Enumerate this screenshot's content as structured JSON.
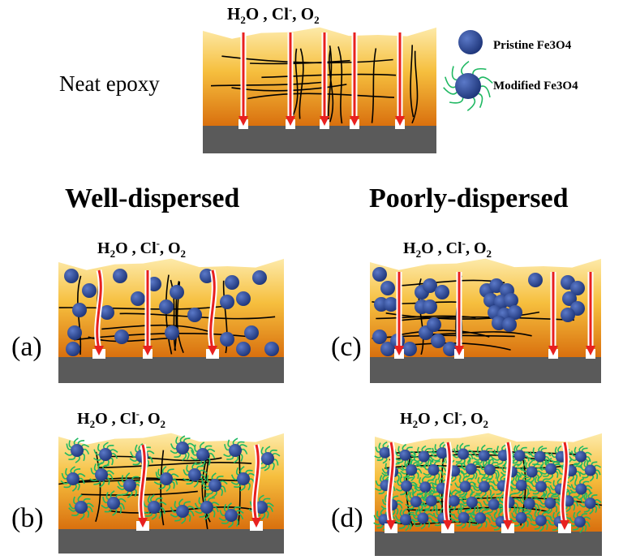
{
  "top": {
    "label": "Neat epoxy",
    "species": {
      "a": "H",
      "a_sub": "2",
      "b": "O , Cl",
      "b_sup": "-",
      "c": ", O",
      "c_sub": "2"
    }
  },
  "legend": {
    "pristine": "Pristine Fe3O4",
    "modified": "Modified Fe3O4"
  },
  "headings": {
    "well": "Well-dispersed",
    "poor": "Poorly-dispersed"
  },
  "panels": [
    {
      "id": "a",
      "label": "(a)",
      "particles": "pristine",
      "dispersion": "well"
    },
    {
      "id": "b",
      "label": "(b)",
      "particles": "modified",
      "dispersion": "well"
    },
    {
      "id": "c",
      "label": "(c)",
      "particles": "pristine",
      "dispersion": "poor"
    },
    {
      "id": "d",
      "label": "(d)",
      "particles": "modified",
      "dispersion": "poor"
    }
  ],
  "colors": {
    "coating_top": "#fde7a8",
    "coating_bottom": "#e07b10",
    "substrate": "#5a5a5a",
    "arrow": "#e8201f",
    "particle": "#2b4694",
    "shell": "#1fb862",
    "chain": "#000000"
  }
}
